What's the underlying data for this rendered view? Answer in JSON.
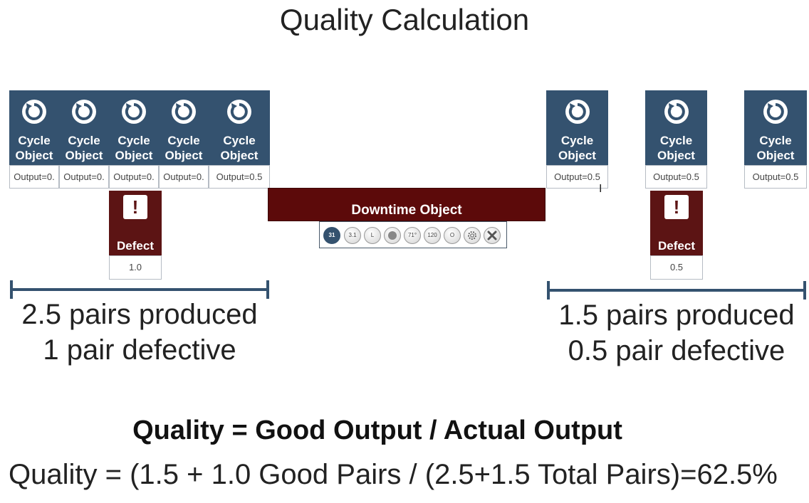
{
  "title": "Quality Calculation",
  "cycle_label_line1": "Cycle",
  "cycle_label_line2": "Object",
  "cycles_left": [
    {
      "output": "Output=0."
    },
    {
      "output": "Output=0."
    },
    {
      "output": "Output=0."
    },
    {
      "output": "Output=0."
    },
    {
      "output": "Output=0.5"
    }
  ],
  "cycles_right": [
    {
      "output": "Output=0.5"
    },
    {
      "output": "Output=0.5"
    },
    {
      "output": "Output=0.5"
    }
  ],
  "defect_label": "Defect",
  "defect_icon": "!",
  "defects": [
    {
      "value": "1.0"
    },
    {
      "value": "0.5"
    }
  ],
  "downtime_label": "Downtime Object",
  "toolbar_buttons": [
    "31",
    "3.1",
    "L",
    "",
    "71°",
    "120",
    "O",
    "",
    ""
  ],
  "summary_left": {
    "line1": "2.5 pairs produced",
    "line2": "1 pair defective"
  },
  "summary_right": {
    "line1": "1.5 pairs produced",
    "line2": "0.5 pair defective"
  },
  "formula": "Quality = Good Output / Actual Output",
  "calculation": "Quality = (1.5 + 1.0 Good Pairs / (2.5+1.5 Total Pairs)=62.5%",
  "colors": {
    "cycle": "#34526f",
    "defect": "#5c1414",
    "downtime": "#5c0a0a"
  }
}
